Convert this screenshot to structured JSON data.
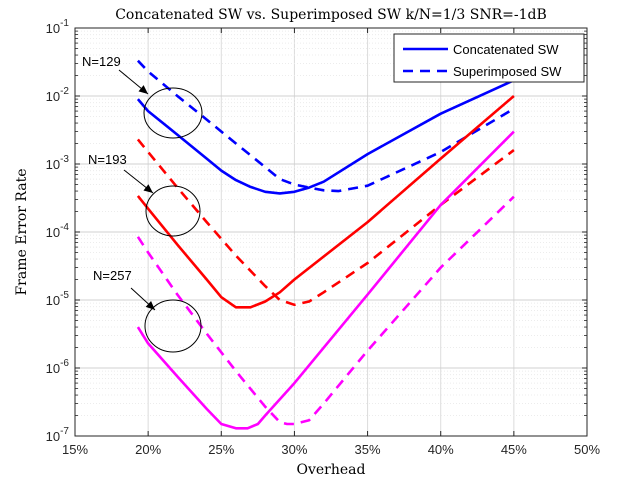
{
  "chart_data": {
    "type": "line",
    "title": "Concatenated SW vs. Superimposed SW k/N=1/3 SNR=-1dB",
    "xlabel": "Overhead",
    "ylabel": "Frame Error Rate",
    "xlim": [
      15,
      50
    ],
    "ylim_exponent": [
      -7,
      -1
    ],
    "yscale": "log",
    "grid": true,
    "legend_position": "top-right",
    "x_ticks": [
      {
        "value": 15,
        "label": "15%"
      },
      {
        "value": 20,
        "label": "20%"
      },
      {
        "value": 25,
        "label": "25%"
      },
      {
        "value": 30,
        "label": "30%"
      },
      {
        "value": 35,
        "label": "35%"
      },
      {
        "value": 40,
        "label": "40%"
      },
      {
        "value": 45,
        "label": "45%"
      },
      {
        "value": 50,
        "label": "50%"
      }
    ],
    "y_ticks": [
      {
        "exp": -1,
        "base": "10",
        "sup": "-1"
      },
      {
        "exp": -2,
        "base": "10",
        "sup": "-2"
      },
      {
        "exp": -3,
        "base": "10",
        "sup": "-3"
      },
      {
        "exp": -4,
        "base": "10",
        "sup": "-4"
      },
      {
        "exp": -5,
        "base": "10",
        "sup": "-5"
      },
      {
        "exp": -6,
        "base": "10",
        "sup": "-6"
      },
      {
        "exp": -7,
        "base": "10",
        "sup": "-7"
      }
    ],
    "legend": [
      {
        "label": "Concatenated SW",
        "style": "solid",
        "color": "#0000ff"
      },
      {
        "label": "Superimposed SW",
        "style": "dashed",
        "color": "#0000ff"
      }
    ],
    "annotations": [
      {
        "text": "N=129"
      },
      {
        "text": "N=193"
      },
      {
        "text": "N=257"
      }
    ],
    "series": [
      {
        "group": "N=129",
        "kind": "Concatenated",
        "color": "#0000ff",
        "style": "solid",
        "x": [
          19.3,
          20,
          22,
          24,
          25,
          26,
          27,
          28,
          29,
          30,
          31,
          32,
          35,
          40,
          45
        ],
        "y": [
          0.009,
          0.006,
          0.0027,
          0.0012,
          0.0008,
          0.00058,
          0.00046,
          0.00039,
          0.00037,
          0.00039,
          0.00045,
          0.00055,
          0.0014,
          0.0055,
          0.017
        ]
      },
      {
        "group": "N=129",
        "kind": "Superimposed",
        "color": "#0000ff",
        "style": "dashed",
        "x": [
          19.3,
          20,
          22,
          24,
          26,
          28,
          29,
          30,
          31,
          32,
          33,
          35,
          40,
          45
        ],
        "y": [
          0.033,
          0.023,
          0.01,
          0.0045,
          0.002,
          0.0009,
          0.0006,
          0.0005,
          0.00045,
          0.00041,
          0.0004,
          0.00048,
          0.0015,
          0.0065
        ]
      },
      {
        "group": "N=193",
        "kind": "Concatenated",
        "color": "#ff0000",
        "style": "solid",
        "x": [
          19.3,
          20,
          22,
          24,
          25,
          26,
          27,
          28,
          29,
          30,
          35,
          40,
          45
        ],
        "y": [
          0.00034,
          0.00022,
          6.5e-05,
          2e-05,
          1.1e-05,
          7.8e-06,
          7.8e-06,
          9.5e-06,
          1.3e-05,
          2e-05,
          0.00014,
          0.0012,
          0.01
        ]
      },
      {
        "group": "N=193",
        "kind": "Superimposed",
        "color": "#ff0000",
        "style": "dashed",
        "x": [
          19.3,
          20,
          22,
          24,
          26,
          28,
          29,
          30,
          31,
          32,
          35,
          40,
          45
        ],
        "y": [
          0.0023,
          0.0015,
          0.00045,
          0.00014,
          4.5e-05,
          1.6e-05,
          1e-05,
          8.5e-06,
          9.5e-06,
          1.3e-05,
          3.5e-05,
          0.00025,
          0.0016
        ]
      },
      {
        "group": "N=257",
        "kind": "Concatenated",
        "color": "#ff00ff",
        "style": "solid",
        "x": [
          19.3,
          20,
          22,
          24,
          25,
          26,
          26.8,
          27.5,
          28,
          30,
          35,
          40,
          45
        ],
        "y": [
          4e-06,
          2.3e-06,
          7.5e-07,
          2.5e-07,
          1.5e-07,
          1.3e-07,
          1.3e-07,
          1.5e-07,
          2e-07,
          6e-07,
          1.2e-05,
          0.00025,
          0.003
        ]
      },
      {
        "group": "N=257",
        "kind": "Superimposed",
        "color": "#ff00ff",
        "style": "dashed",
        "x": [
          19.3,
          20,
          22,
          24,
          26,
          28,
          29,
          29.5,
          30,
          31,
          32,
          35,
          40,
          45
        ],
        "y": [
          8.5e-05,
          5e-05,
          1.2e-05,
          3.2e-06,
          9e-07,
          2.7e-07,
          1.6e-07,
          1.5e-07,
          1.5e-07,
          1.7e-07,
          3e-07,
          1.8e-06,
          3e-05,
          0.00033
        ]
      }
    ]
  }
}
